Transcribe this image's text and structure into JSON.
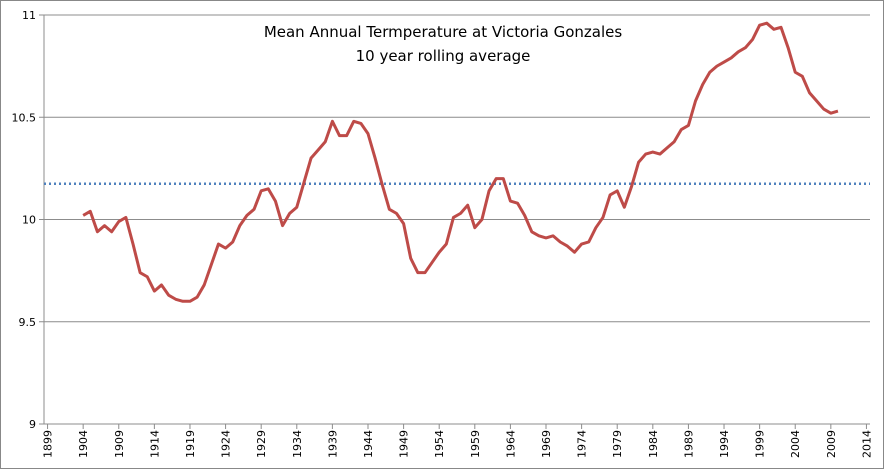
{
  "chart_data": {
    "type": "line",
    "title": "Mean Annual Termperature at Victoria Gonzales",
    "subtitle": "10 year rolling average",
    "x": [
      1904,
      1905,
      1906,
      1907,
      1908,
      1909,
      1910,
      1911,
      1912,
      1913,
      1914,
      1915,
      1916,
      1917,
      1918,
      1919,
      1920,
      1921,
      1922,
      1923,
      1924,
      1925,
      1926,
      1927,
      1928,
      1929,
      1930,
      1931,
      1932,
      1933,
      1934,
      1935,
      1936,
      1937,
      1938,
      1939,
      1940,
      1941,
      1942,
      1943,
      1944,
      1945,
      1946,
      1947,
      1948,
      1949,
      1950,
      1951,
      1952,
      1953,
      1954,
      1955,
      1956,
      1957,
      1958,
      1959,
      1960,
      1961,
      1962,
      1963,
      1964,
      1965,
      1966,
      1967,
      1968,
      1969,
      1970,
      1971,
      1972,
      1973,
      1974,
      1975,
      1976,
      1977,
      1978,
      1979,
      1980,
      1981,
      1982,
      1983,
      1984,
      1985,
      1986,
      1987,
      1988,
      1989,
      1990,
      1991,
      1992,
      1993,
      1994,
      1995,
      1996,
      1997,
      1998,
      1999,
      2000,
      2001,
      2002,
      2003,
      2004,
      2005,
      2006,
      2007,
      2008,
      2009,
      2010
    ],
    "series": [
      {
        "color": "#be4b48",
        "values": [
          10.02,
          10.04,
          9.94,
          9.97,
          9.94,
          9.99,
          10.01,
          9.88,
          9.74,
          9.72,
          9.65,
          9.68,
          9.63,
          9.61,
          9.6,
          9.6,
          9.62,
          9.68,
          9.78,
          9.88,
          9.86,
          9.89,
          9.97,
          10.02,
          10.05,
          10.14,
          10.15,
          10.09,
          9.97,
          10.03,
          10.06,
          10.18,
          10.3,
          10.34,
          10.38,
          10.48,
          10.41,
          10.41,
          10.48,
          10.47,
          10.42,
          10.3,
          10.17,
          10.05,
          10.03,
          9.98,
          9.81,
          9.74,
          9.74,
          9.79,
          9.84,
          9.88,
          10.01,
          10.03,
          10.07,
          9.96,
          10.0,
          10.14,
          10.2,
          10.2,
          10.09,
          10.08,
          10.02,
          9.94,
          9.92,
          9.91,
          9.92,
          9.89,
          9.87,
          9.84,
          9.88,
          9.89,
          9.96,
          10.01,
          10.12,
          10.14,
          10.06,
          10.16,
          10.28,
          10.32,
          10.33,
          10.32,
          10.35,
          10.38,
          10.44,
          10.46,
          10.58,
          10.66,
          10.72,
          10.75,
          10.77,
          10.79,
          10.82,
          10.84,
          10.88,
          10.95,
          10.96,
          10.93,
          10.94,
          10.84,
          10.72,
          10.7,
          10.62,
          10.58,
          10.54,
          10.52,
          10.53
        ]
      }
    ],
    "reference_line": {
      "value": 10.175,
      "color": "#4f81bd",
      "style": "dotted"
    },
    "xlim": [
      1898.5,
      2014.5
    ],
    "xticks": [
      1899,
      1904,
      1909,
      1914,
      1919,
      1924,
      1929,
      1934,
      1939,
      1944,
      1949,
      1954,
      1959,
      1964,
      1969,
      1974,
      1979,
      1984,
      1989,
      1994,
      1999,
      2004,
      2009,
      2014
    ],
    "ylim": [
      9,
      11
    ],
    "yticks": [
      9,
      9.5,
      10,
      10.5,
      11
    ],
    "grid": true
  }
}
